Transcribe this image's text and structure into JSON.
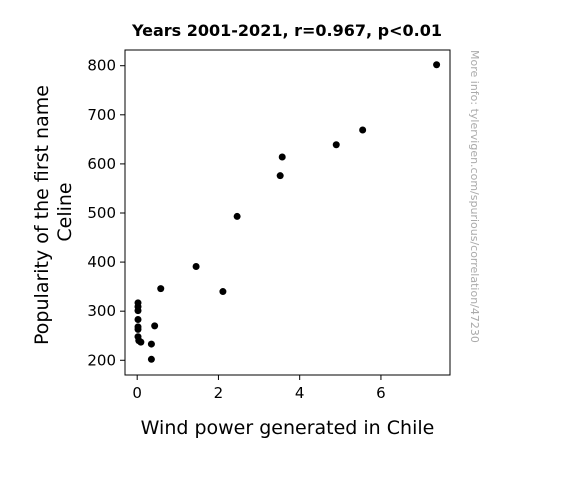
{
  "chart_data": {
    "type": "scatter",
    "title": "Years 2001-2021, r=0.967, p<0.01",
    "xlabel": "Wind power generated in Chile",
    "ylabel_lines": [
      "Popularity of the first name",
      "Celine"
    ],
    "xlim": [
      -0.3,
      7.7
    ],
    "ylim": [
      170,
      832
    ],
    "xticks": [
      0,
      2,
      4,
      6
    ],
    "yticks": [
      200,
      300,
      400,
      500,
      600,
      700,
      800
    ],
    "grid": false,
    "marker_color": "#000000",
    "points": [
      {
        "x": 0.02,
        "y": 317
      },
      {
        "x": 0.02,
        "y": 309
      },
      {
        "x": 0.02,
        "y": 301
      },
      {
        "x": 0.02,
        "y": 283
      },
      {
        "x": 0.02,
        "y": 268
      },
      {
        "x": 0.02,
        "y": 263
      },
      {
        "x": 0.02,
        "y": 248
      },
      {
        "x": 0.04,
        "y": 240
      },
      {
        "x": 0.09,
        "y": 237
      },
      {
        "x": 0.35,
        "y": 233
      },
      {
        "x": 0.35,
        "y": 202
      },
      {
        "x": 0.43,
        "y": 270
      },
      {
        "x": 0.58,
        "y": 346
      },
      {
        "x": 1.45,
        "y": 391
      },
      {
        "x": 2.11,
        "y": 340
      },
      {
        "x": 2.46,
        "y": 493
      },
      {
        "x": 3.52,
        "y": 576
      },
      {
        "x": 3.57,
        "y": 614
      },
      {
        "x": 4.9,
        "y": 639
      },
      {
        "x": 5.55,
        "y": 669
      },
      {
        "x": 7.37,
        "y": 802
      }
    ]
  },
  "watermark": "More info: tylervigen.com/spurious/correlation/47230"
}
